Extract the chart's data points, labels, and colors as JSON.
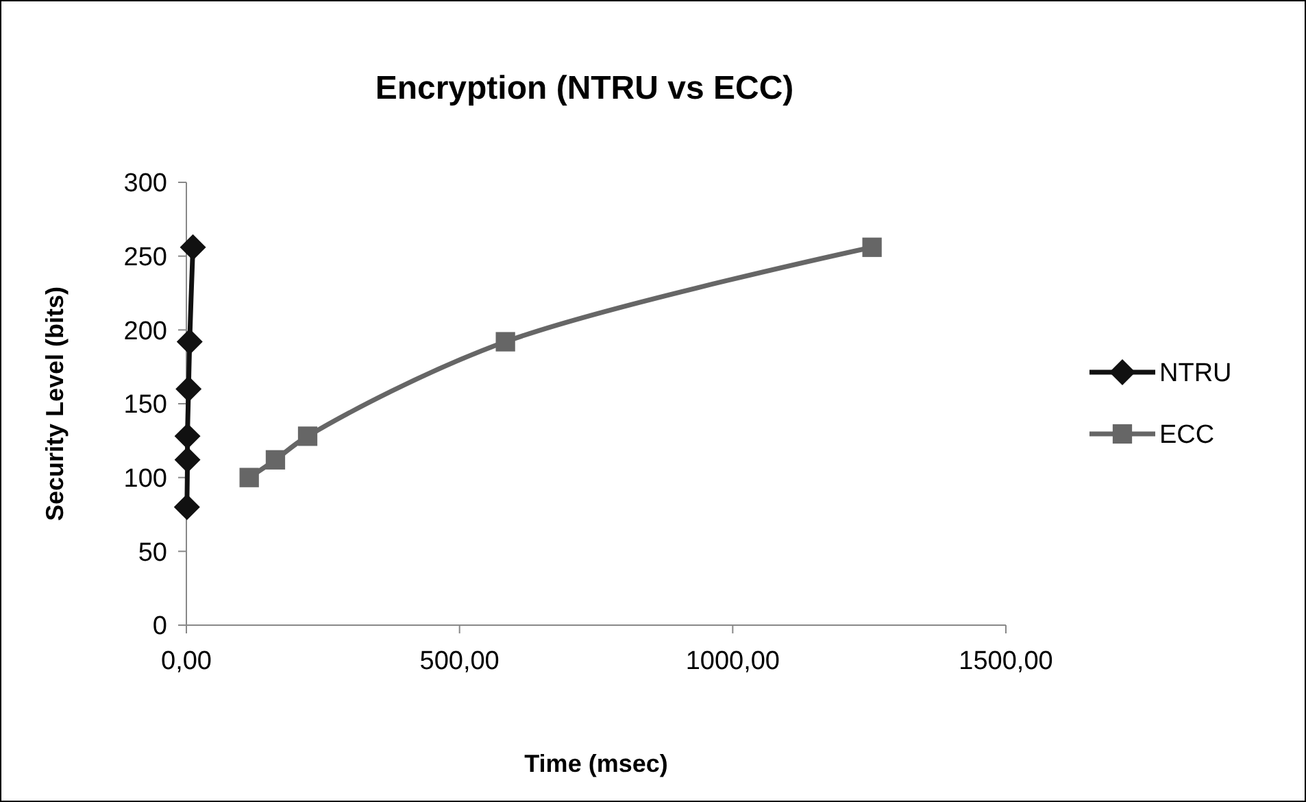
{
  "chart_data": {
    "type": "line",
    "title": "Encryption (NTRU vs ECC)",
    "xlabel": "Time (msec)",
    "ylabel": "Security Level (bits)",
    "xlim": [
      0,
      1500
    ],
    "xticks": [
      {
        "value": 0,
        "label": "0,00"
      },
      {
        "value": 500,
        "label": "500,00"
      },
      {
        "value": 1000,
        "label": "1000,00"
      },
      {
        "value": 1500,
        "label": "1500,00"
      }
    ],
    "ylim": [
      0,
      300
    ],
    "yticks": [
      0,
      50,
      100,
      150,
      200,
      250,
      300
    ],
    "grid": false,
    "legend": "right",
    "series": [
      {
        "name": "NTRU",
        "color": "#111111",
        "marker": "diamond",
        "x": [
          1,
          2,
          2,
          4,
          6,
          12
        ],
        "values": [
          80,
          112,
          128,
          160,
          192,
          256
        ]
      },
      {
        "name": "ECC",
        "color": "#666666",
        "marker": "square",
        "x": [
          115,
          163,
          222,
          584,
          1255
        ],
        "values": [
          100,
          112,
          128,
          192,
          256
        ]
      }
    ]
  }
}
